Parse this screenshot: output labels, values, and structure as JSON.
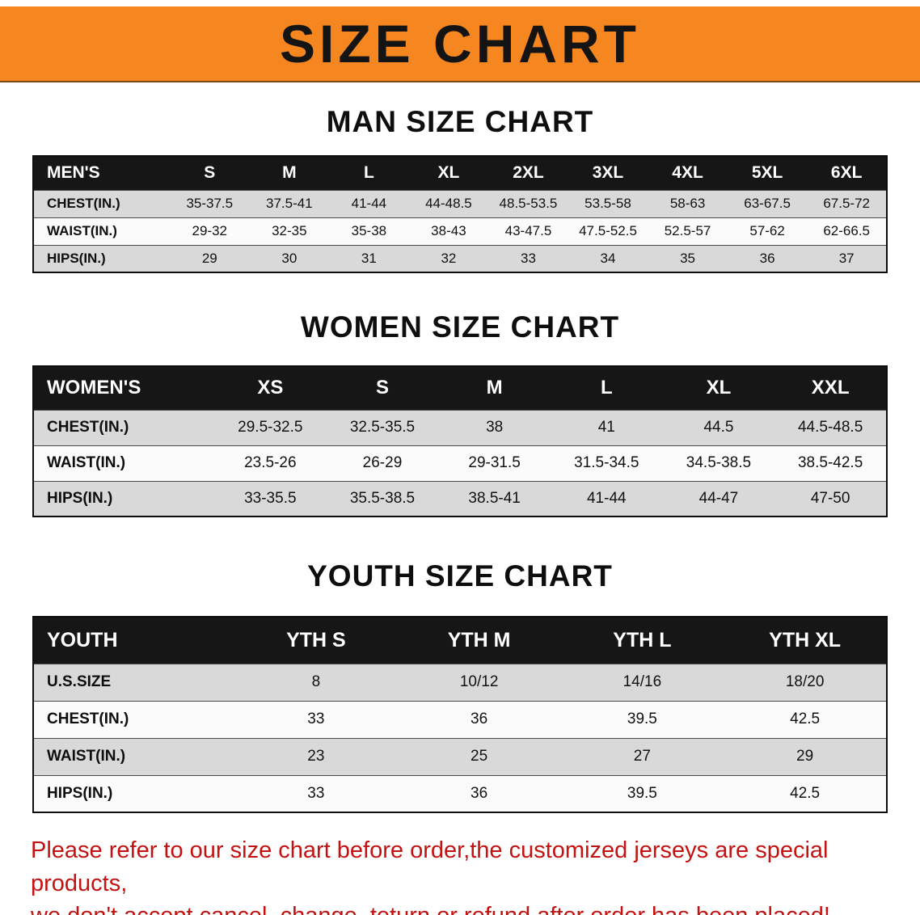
{
  "banner": {
    "title": "SIZE CHART"
  },
  "man": {
    "heading": "MAN SIZE CHART",
    "table": {
      "header": [
        "MEN'S",
        "S",
        "M",
        "L",
        "XL",
        "2XL",
        "3XL",
        "4XL",
        "5XL",
        "6XL"
      ],
      "rows": [
        {
          "label": "CHEST(IN.)",
          "values": [
            "35-37.5",
            "37.5-41",
            "41-44",
            "44-48.5",
            "48.5-53.5",
            "53.5-58",
            "58-63",
            "63-67.5",
            "67.5-72"
          ]
        },
        {
          "label": "WAIST(IN.)",
          "values": [
            "29-32",
            "32-35",
            "35-38",
            "38-43",
            "43-47.5",
            "47.5-52.5",
            "52.5-57",
            "57-62",
            "62-66.5"
          ]
        },
        {
          "label": "HIPS(IN.)",
          "values": [
            "29",
            "30",
            "31",
            "32",
            "33",
            "34",
            "35",
            "36",
            "37"
          ]
        }
      ]
    }
  },
  "women": {
    "heading": "WOMEN SIZE CHART",
    "table": {
      "header": [
        "WOMEN'S",
        "XS",
        "S",
        "M",
        "L",
        "XL",
        "XXL"
      ],
      "rows": [
        {
          "label": "CHEST(IN.)",
          "values": [
            "29.5-32.5",
            "32.5-35.5",
            "38",
            "41",
            "44.5",
            "44.5-48.5"
          ]
        },
        {
          "label": "WAIST(IN.)",
          "values": [
            "23.5-26",
            "26-29",
            "29-31.5",
            "31.5-34.5",
            "34.5-38.5",
            "38.5-42.5"
          ]
        },
        {
          "label": "HIPS(IN.)",
          "values": [
            "33-35.5",
            "35.5-38.5",
            "38.5-41",
            "41-44",
            "44-47",
            "47-50"
          ]
        }
      ]
    }
  },
  "youth": {
    "heading": "YOUTH SIZE CHART",
    "table": {
      "header": [
        "YOUTH",
        "YTH S",
        "YTH M",
        "YTH L",
        "YTH XL"
      ],
      "rows": [
        {
          "label": "U.S.SIZE",
          "values": [
            "8",
            "10/12",
            "14/16",
            "18/20"
          ]
        },
        {
          "label": "CHEST(IN.)",
          "values": [
            "33",
            "36",
            "39.5",
            "42.5"
          ]
        },
        {
          "label": "WAIST(IN.)",
          "values": [
            "23",
            "25",
            "27",
            "29"
          ]
        },
        {
          "label": "HIPS(IN.)",
          "values": [
            "33",
            "36",
            "39.5",
            "42.5"
          ]
        }
      ]
    }
  },
  "footer": {
    "line1": "Please refer to our size chart before order,the customized jerseys are special products,",
    "line2": "we don't accept cancel, change, teturn or refund after order has been placed!"
  },
  "colors": {
    "banner_bg": "#F6861F",
    "table_header_bg": "#161616",
    "shaded_row_bg": "#D9D9D9",
    "note_text": "#C31212"
  }
}
